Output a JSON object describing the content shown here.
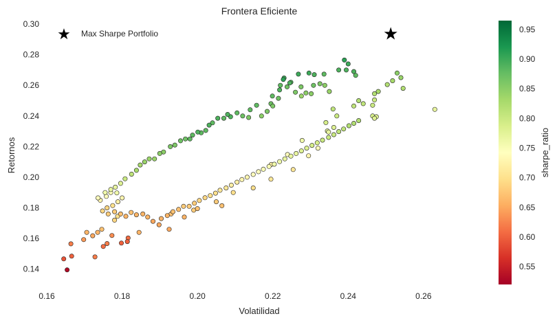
{
  "chart_data": {
    "type": "scatter",
    "title": "Frontera Eficiente",
    "xlabel": "Volatilidad",
    "ylabel": "Retornos",
    "xlim": [
      0.16,
      0.275
    ],
    "ylim": [
      0.13,
      0.3
    ],
    "xticks": [
      0.16,
      0.18,
      0.2,
      0.22,
      0.24,
      0.26
    ],
    "xtick_labels": [
      "0.16",
      "0.18",
      "0.20",
      "0.22",
      "0.24",
      "0.26"
    ],
    "yticks": [
      0.14,
      0.16,
      0.18,
      0.2,
      0.22,
      0.24,
      0.26,
      0.28,
      0.3
    ],
    "ytick_labels": [
      "0.14",
      "0.16",
      "0.18",
      "0.20",
      "0.22",
      "0.24",
      "0.26",
      "0.28",
      "0.30"
    ],
    "grid": false,
    "legend": {
      "position": "top-left",
      "entries": [
        "Max Sharpe Portfolio"
      ]
    },
    "colorbar": {
      "label": "sharpe_ratio",
      "range": [
        0.52,
        0.965
      ],
      "ticks": [
        0.55,
        0.6,
        0.65,
        0.7,
        0.75,
        0.8,
        0.85,
        0.9,
        0.95
      ],
      "tick_labels": [
        "0.55",
        "0.60",
        "0.65",
        "0.70",
        "0.75",
        "0.80",
        "0.85",
        "0.90",
        "0.95"
      ],
      "colormap": "RdYlGn",
      "colors": [
        "#a50026",
        "#d73027",
        "#f46d43",
        "#fdae61",
        "#fee08b",
        "#ffffbf",
        "#d9ef8b",
        "#a6d96a",
        "#66bd63",
        "#1a9850",
        "#006837"
      ]
    },
    "highlight": {
      "name": "Max Sharpe Portfolio",
      "marker": "star",
      "color": "#000000",
      "x": 0.2513,
      "y": 0.2935
    },
    "series": [
      {
        "points": [
          [
            0.1654,
            0.1395,
            0.53
          ],
          [
            0.1645,
            0.1467,
            0.59
          ],
          [
            0.1666,
            0.1485,
            0.6
          ],
          [
            0.1664,
            0.1565,
            0.62
          ],
          [
            0.1728,
            0.148,
            0.62
          ],
          [
            0.175,
            0.1548,
            0.61
          ],
          [
            0.176,
            0.1567,
            0.62
          ],
          [
            0.1773,
            0.162,
            0.63
          ],
          [
            0.1798,
            0.157,
            0.6
          ],
          [
            0.1816,
            0.1603,
            0.61
          ],
          [
            0.1814,
            0.158,
            0.6
          ],
          [
            0.1698,
            0.1593,
            0.64
          ],
          [
            0.1706,
            0.164,
            0.66
          ],
          [
            0.1722,
            0.1618,
            0.65
          ],
          [
            0.1735,
            0.164,
            0.66
          ],
          [
            0.1746,
            0.166,
            0.67
          ],
          [
            0.1788,
            0.1745,
            0.7
          ],
          [
            0.178,
            0.172,
            0.69
          ],
          [
            0.1845,
            0.164,
            0.66
          ],
          [
            0.1925,
            0.166,
            0.65
          ],
          [
            0.1965,
            0.174,
            0.66
          ],
          [
            0.193,
            0.176,
            0.67
          ],
          [
            0.199,
            0.1785,
            0.68
          ],
          [
            0.2065,
            0.1814,
            0.67
          ],
          [
            0.205,
            0.184,
            0.68
          ],
          [
            0.2,
            0.1795,
            0.67
          ],
          [
            0.2095,
            0.19,
            0.7
          ],
          [
            0.2148,
            0.193,
            0.7
          ],
          [
            0.2195,
            0.1987,
            0.71
          ],
          [
            0.2254,
            0.205,
            0.71
          ],
          [
            0.2196,
            0.2083,
            0.72
          ],
          [
            0.2239,
            0.2148,
            0.74
          ],
          [
            0.2295,
            0.214,
            0.73
          ],
          [
            0.232,
            0.219,
            0.74
          ],
          [
            0.2278,
            0.224,
            0.76
          ],
          [
            0.2345,
            0.2302,
            0.77
          ],
          [
            0.2348,
            0.2295,
            0.77
          ],
          [
            0.2362,
            0.2325,
            0.78
          ],
          [
            0.2341,
            0.2357,
            0.79
          ],
          [
            0.2465,
            0.247,
            0.8
          ],
          [
            0.2465,
            0.24,
            0.79
          ],
          [
            0.2475,
            0.2395,
            0.78
          ],
          [
            0.247,
            0.2385,
            0.78
          ],
          [
            0.263,
            0.2443,
            0.77
          ],
          [
            0.2518,
            0.263,
            0.83
          ],
          [
            0.253,
            0.268,
            0.85
          ],
          [
            0.254,
            0.265,
            0.84
          ],
          [
            0.2546,
            0.258,
            0.82
          ],
          [
            0.2504,
            0.2605,
            0.82
          ],
          [
            0.247,
            0.2505,
            0.8
          ],
          [
            0.244,
            0.248,
            0.81
          ],
          [
            0.247,
            0.2545,
            0.82
          ],
          [
            0.248,
            0.256,
            0.83
          ],
          [
            0.2428,
            0.25,
            0.82
          ],
          [
            0.2415,
            0.2465,
            0.81
          ],
          [
            0.237,
            0.24,
            0.8
          ],
          [
            0.236,
            0.2445,
            0.81
          ],
          [
            0.235,
            0.256,
            0.84
          ],
          [
            0.2338,
            0.26,
            0.85
          ],
          [
            0.2325,
            0.261,
            0.86
          ],
          [
            0.2336,
            0.2673,
            0.88
          ],
          [
            0.231,
            0.267,
            0.89
          ],
          [
            0.2308,
            0.26,
            0.87
          ],
          [
            0.2302,
            0.2545,
            0.85
          ],
          [
            0.2288,
            0.255,
            0.85
          ],
          [
            0.2275,
            0.259,
            0.86
          ],
          [
            0.2276,
            0.253,
            0.84
          ],
          [
            0.226,
            0.2555,
            0.86
          ],
          [
            0.2238,
            0.259,
            0.87
          ],
          [
            0.222,
            0.26,
            0.88
          ],
          [
            0.223,
            0.2648,
            0.9
          ],
          [
            0.2268,
            0.2673,
            0.9
          ],
          [
            0.2296,
            0.268,
            0.9
          ],
          [
            0.239,
            0.2765,
            0.91
          ],
          [
            0.24,
            0.274,
            0.9
          ],
          [
            0.2415,
            0.269,
            0.89
          ],
          [
            0.242,
            0.2665,
            0.88
          ],
          [
            0.2395,
            0.27,
            0.89
          ],
          [
            0.2375,
            0.27,
            0.89
          ],
          [
            0.2248,
            0.262,
            0.89
          ],
          [
            0.2245,
            0.2615,
            0.89
          ],
          [
            0.2228,
            0.2638,
            0.91
          ],
          [
            0.2218,
            0.257,
            0.89
          ],
          [
            0.2199,
            0.253,
            0.88
          ],
          [
            0.2215,
            0.2515,
            0.87
          ],
          [
            0.2195,
            0.248,
            0.87
          ],
          [
            0.22,
            0.2465,
            0.86
          ],
          [
            0.2185,
            0.243,
            0.86
          ],
          [
            0.217,
            0.24,
            0.85
          ],
          [
            0.2157,
            0.247,
            0.88
          ],
          [
            0.214,
            0.244,
            0.88
          ],
          [
            0.2136,
            0.239,
            0.86
          ],
          [
            0.212,
            0.24,
            0.87
          ],
          [
            0.2105,
            0.242,
            0.88
          ],
          [
            0.2088,
            0.2395,
            0.89
          ],
          [
            0.208,
            0.241,
            0.89
          ],
          [
            0.207,
            0.2385,
            0.88
          ],
          [
            0.2054,
            0.2385,
            0.89
          ],
          [
            0.204,
            0.2355,
            0.88
          ],
          [
            0.2031,
            0.234,
            0.89
          ],
          [
            0.2022,
            0.2305,
            0.88
          ],
          [
            0.201,
            0.229,
            0.88
          ],
          [
            0.2001,
            0.2295,
            0.89
          ],
          [
            0.1987,
            0.2275,
            0.88
          ],
          [
            0.198,
            0.225,
            0.88
          ],
          [
            0.1968,
            0.225,
            0.87
          ],
          [
            0.1955,
            0.2238,
            0.87
          ],
          [
            0.194,
            0.221,
            0.86
          ],
          [
            0.1928,
            0.22,
            0.86
          ],
          [
            0.191,
            0.2165,
            0.85
          ],
          [
            0.19,
            0.2155,
            0.85
          ],
          [
            0.1886,
            0.212,
            0.84
          ],
          [
            0.1872,
            0.212,
            0.84
          ],
          [
            0.186,
            0.21,
            0.84
          ],
          [
            0.1848,
            0.208,
            0.83
          ],
          [
            0.1838,
            0.2045,
            0.83
          ],
          [
            0.1825,
            0.202,
            0.81
          ],
          [
            0.1808,
            0.199,
            0.8
          ],
          [
            0.1796,
            0.196,
            0.78
          ],
          [
            0.1782,
            0.1935,
            0.77
          ],
          [
            0.177,
            0.19,
            0.75
          ],
          [
            0.1758,
            0.1875,
            0.74
          ],
          [
            0.1742,
            0.185,
            0.73
          ],
          [
            0.1736,
            0.1865,
            0.74
          ],
          [
            0.1755,
            0.19,
            0.76
          ],
          [
            0.177,
            0.192,
            0.77
          ],
          [
            0.1786,
            0.1898,
            0.76
          ],
          [
            0.18,
            0.1865,
            0.73
          ],
          [
            0.1789,
            0.184,
            0.72
          ],
          [
            0.1775,
            0.1815,
            0.7
          ],
          [
            0.176,
            0.18,
            0.69
          ],
          [
            0.1748,
            0.178,
            0.69
          ],
          [
            0.1763,
            0.176,
            0.68
          ],
          [
            0.178,
            0.1775,
            0.68
          ],
          [
            0.1796,
            0.176,
            0.67
          ],
          [
            0.181,
            0.1745,
            0.66
          ],
          [
            0.1824,
            0.177,
            0.67
          ],
          [
            0.1838,
            0.1755,
            0.66
          ],
          [
            0.1855,
            0.176,
            0.66
          ],
          [
            0.1868,
            0.174,
            0.66
          ],
          [
            0.1882,
            0.1712,
            0.65
          ],
          [
            0.1898,
            0.169,
            0.65
          ],
          [
            0.1904,
            0.173,
            0.66
          ],
          [
            0.192,
            0.175,
            0.66
          ],
          [
            0.1935,
            0.1775,
            0.67
          ],
          [
            0.195,
            0.179,
            0.67
          ],
          [
            0.1963,
            0.181,
            0.68
          ],
          [
            0.1978,
            0.181,
            0.68
          ],
          [
            0.1992,
            0.183,
            0.68
          ],
          [
            0.2005,
            0.1848,
            0.69
          ],
          [
            0.202,
            0.1866,
            0.69
          ],
          [
            0.2034,
            0.188,
            0.7
          ],
          [
            0.2048,
            0.1896,
            0.7
          ],
          [
            0.206,
            0.1915,
            0.71
          ],
          [
            0.2076,
            0.193,
            0.71
          ],
          [
            0.209,
            0.1948,
            0.72
          ],
          [
            0.2105,
            0.1968,
            0.72
          ],
          [
            0.2118,
            0.1985,
            0.73
          ],
          [
            0.2132,
            0.2,
            0.73
          ],
          [
            0.2148,
            0.2018,
            0.74
          ],
          [
            0.2162,
            0.2036,
            0.74
          ],
          [
            0.2175,
            0.2052,
            0.75
          ],
          [
            0.219,
            0.207,
            0.75
          ],
          [
            0.2204,
            0.2085,
            0.76
          ],
          [
            0.2218,
            0.2102,
            0.76
          ],
          [
            0.2232,
            0.212,
            0.77
          ],
          [
            0.2248,
            0.2138,
            0.77
          ],
          [
            0.2262,
            0.2155,
            0.77
          ],
          [
            0.2276,
            0.2172,
            0.78
          ],
          [
            0.229,
            0.219,
            0.78
          ],
          [
            0.2304,
            0.2208,
            0.79
          ],
          [
            0.2318,
            0.2225,
            0.79
          ],
          [
            0.2332,
            0.2242,
            0.8
          ],
          [
            0.2348,
            0.226,
            0.8
          ],
          [
            0.2362,
            0.2278,
            0.8
          ],
          [
            0.2375,
            0.2298,
            0.81
          ],
          [
            0.2388,
            0.2315,
            0.81
          ],
          [
            0.2402,
            0.2336,
            0.82
          ],
          [
            0.2415,
            0.2352,
            0.82
          ],
          [
            0.2428,
            0.237,
            0.82
          ]
        ]
      }
    ]
  }
}
